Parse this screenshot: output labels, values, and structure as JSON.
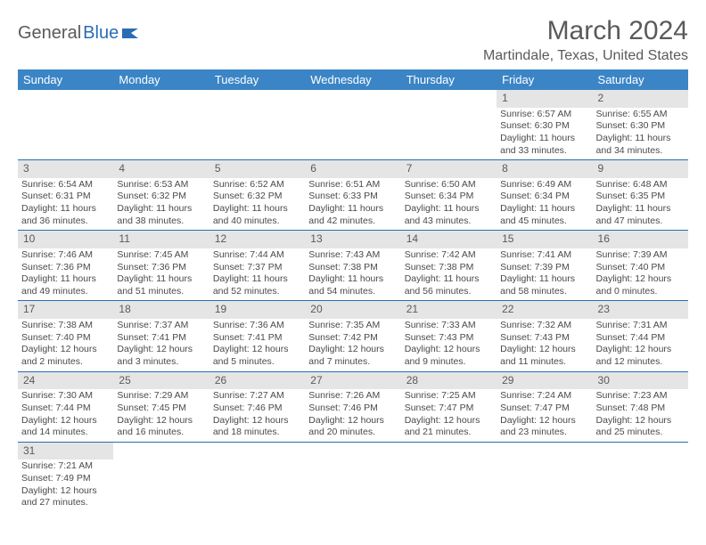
{
  "logo": {
    "textA": "General",
    "textB": "Blue"
  },
  "title": "March 2024",
  "location": "Martindale, Texas, United States",
  "colors": {
    "header_bg": "#3b85c6",
    "daynum_bg": "#e5e5e5",
    "border": "#2a6db5",
    "text": "#4a4a4a",
    "logo_blue": "#2a6db5"
  },
  "weekdays": [
    "Sunday",
    "Monday",
    "Tuesday",
    "Wednesday",
    "Thursday",
    "Friday",
    "Saturday"
  ],
  "weeks": [
    [
      null,
      null,
      null,
      null,
      null,
      {
        "n": "1",
        "sr": "Sunrise: 6:57 AM",
        "ss": "Sunset: 6:30 PM",
        "dl": "Daylight: 11 hours and 33 minutes."
      },
      {
        "n": "2",
        "sr": "Sunrise: 6:55 AM",
        "ss": "Sunset: 6:30 PM",
        "dl": "Daylight: 11 hours and 34 minutes."
      }
    ],
    [
      {
        "n": "3",
        "sr": "Sunrise: 6:54 AM",
        "ss": "Sunset: 6:31 PM",
        "dl": "Daylight: 11 hours and 36 minutes."
      },
      {
        "n": "4",
        "sr": "Sunrise: 6:53 AM",
        "ss": "Sunset: 6:32 PM",
        "dl": "Daylight: 11 hours and 38 minutes."
      },
      {
        "n": "5",
        "sr": "Sunrise: 6:52 AM",
        "ss": "Sunset: 6:32 PM",
        "dl": "Daylight: 11 hours and 40 minutes."
      },
      {
        "n": "6",
        "sr": "Sunrise: 6:51 AM",
        "ss": "Sunset: 6:33 PM",
        "dl": "Daylight: 11 hours and 42 minutes."
      },
      {
        "n": "7",
        "sr": "Sunrise: 6:50 AM",
        "ss": "Sunset: 6:34 PM",
        "dl": "Daylight: 11 hours and 43 minutes."
      },
      {
        "n": "8",
        "sr": "Sunrise: 6:49 AM",
        "ss": "Sunset: 6:34 PM",
        "dl": "Daylight: 11 hours and 45 minutes."
      },
      {
        "n": "9",
        "sr": "Sunrise: 6:48 AM",
        "ss": "Sunset: 6:35 PM",
        "dl": "Daylight: 11 hours and 47 minutes."
      }
    ],
    [
      {
        "n": "10",
        "sr": "Sunrise: 7:46 AM",
        "ss": "Sunset: 7:36 PM",
        "dl": "Daylight: 11 hours and 49 minutes."
      },
      {
        "n": "11",
        "sr": "Sunrise: 7:45 AM",
        "ss": "Sunset: 7:36 PM",
        "dl": "Daylight: 11 hours and 51 minutes."
      },
      {
        "n": "12",
        "sr": "Sunrise: 7:44 AM",
        "ss": "Sunset: 7:37 PM",
        "dl": "Daylight: 11 hours and 52 minutes."
      },
      {
        "n": "13",
        "sr": "Sunrise: 7:43 AM",
        "ss": "Sunset: 7:38 PM",
        "dl": "Daylight: 11 hours and 54 minutes."
      },
      {
        "n": "14",
        "sr": "Sunrise: 7:42 AM",
        "ss": "Sunset: 7:38 PM",
        "dl": "Daylight: 11 hours and 56 minutes."
      },
      {
        "n": "15",
        "sr": "Sunrise: 7:41 AM",
        "ss": "Sunset: 7:39 PM",
        "dl": "Daylight: 11 hours and 58 minutes."
      },
      {
        "n": "16",
        "sr": "Sunrise: 7:39 AM",
        "ss": "Sunset: 7:40 PM",
        "dl": "Daylight: 12 hours and 0 minutes."
      }
    ],
    [
      {
        "n": "17",
        "sr": "Sunrise: 7:38 AM",
        "ss": "Sunset: 7:40 PM",
        "dl": "Daylight: 12 hours and 2 minutes."
      },
      {
        "n": "18",
        "sr": "Sunrise: 7:37 AM",
        "ss": "Sunset: 7:41 PM",
        "dl": "Daylight: 12 hours and 3 minutes."
      },
      {
        "n": "19",
        "sr": "Sunrise: 7:36 AM",
        "ss": "Sunset: 7:41 PM",
        "dl": "Daylight: 12 hours and 5 minutes."
      },
      {
        "n": "20",
        "sr": "Sunrise: 7:35 AM",
        "ss": "Sunset: 7:42 PM",
        "dl": "Daylight: 12 hours and 7 minutes."
      },
      {
        "n": "21",
        "sr": "Sunrise: 7:33 AM",
        "ss": "Sunset: 7:43 PM",
        "dl": "Daylight: 12 hours and 9 minutes."
      },
      {
        "n": "22",
        "sr": "Sunrise: 7:32 AM",
        "ss": "Sunset: 7:43 PM",
        "dl": "Daylight: 12 hours and 11 minutes."
      },
      {
        "n": "23",
        "sr": "Sunrise: 7:31 AM",
        "ss": "Sunset: 7:44 PM",
        "dl": "Daylight: 12 hours and 12 minutes."
      }
    ],
    [
      {
        "n": "24",
        "sr": "Sunrise: 7:30 AM",
        "ss": "Sunset: 7:44 PM",
        "dl": "Daylight: 12 hours and 14 minutes."
      },
      {
        "n": "25",
        "sr": "Sunrise: 7:29 AM",
        "ss": "Sunset: 7:45 PM",
        "dl": "Daylight: 12 hours and 16 minutes."
      },
      {
        "n": "26",
        "sr": "Sunrise: 7:27 AM",
        "ss": "Sunset: 7:46 PM",
        "dl": "Daylight: 12 hours and 18 minutes."
      },
      {
        "n": "27",
        "sr": "Sunrise: 7:26 AM",
        "ss": "Sunset: 7:46 PM",
        "dl": "Daylight: 12 hours and 20 minutes."
      },
      {
        "n": "28",
        "sr": "Sunrise: 7:25 AM",
        "ss": "Sunset: 7:47 PM",
        "dl": "Daylight: 12 hours and 21 minutes."
      },
      {
        "n": "29",
        "sr": "Sunrise: 7:24 AM",
        "ss": "Sunset: 7:47 PM",
        "dl": "Daylight: 12 hours and 23 minutes."
      },
      {
        "n": "30",
        "sr": "Sunrise: 7:23 AM",
        "ss": "Sunset: 7:48 PM",
        "dl": "Daylight: 12 hours and 25 minutes."
      }
    ],
    [
      {
        "n": "31",
        "sr": "Sunrise: 7:21 AM",
        "ss": "Sunset: 7:49 PM",
        "dl": "Daylight: 12 hours and 27 minutes."
      },
      null,
      null,
      null,
      null,
      null,
      null
    ]
  ]
}
